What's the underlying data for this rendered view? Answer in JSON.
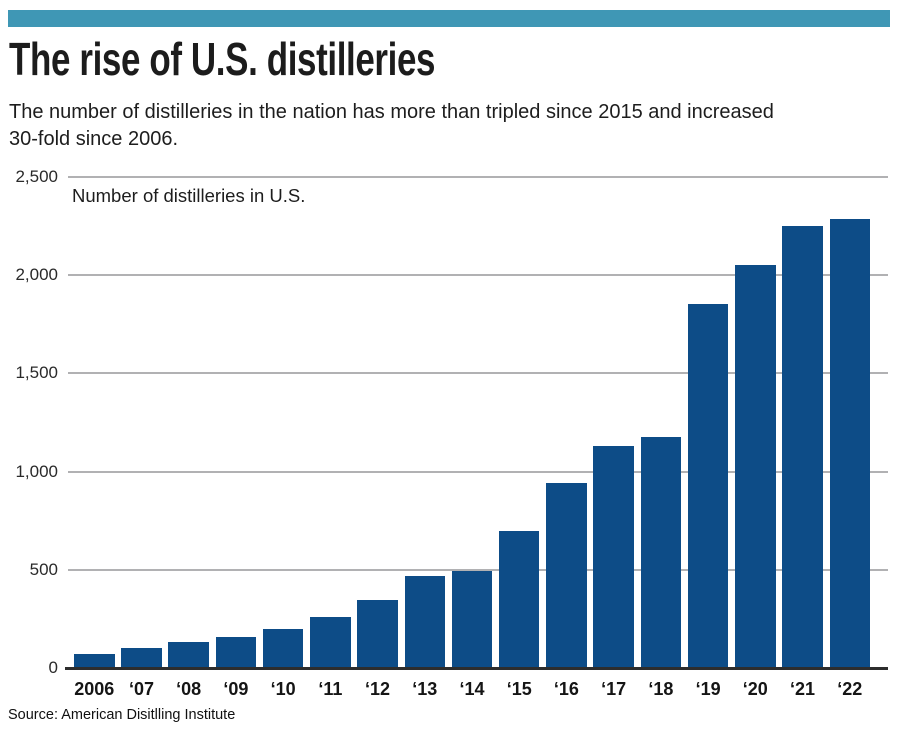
{
  "header": {
    "accent_bar_color": "#3f97b5",
    "title": "The rise of U.S. distilleries",
    "subtitle_lines": [
      "The number of distilleries in the nation has more than tripled since 2015 and increased",
      "30-fold since 2006."
    ]
  },
  "chart_data": {
    "type": "bar",
    "title": "Number of distilleries in U.S.",
    "categories": [
      "2006",
      "‘07",
      "‘08",
      "‘09",
      "‘10",
      "‘11",
      "‘12",
      "‘13",
      "‘14",
      "‘15",
      "‘16",
      "‘17",
      "‘18",
      "‘19",
      "‘20",
      "‘21",
      "‘22"
    ],
    "values": [
      70,
      100,
      130,
      160,
      200,
      260,
      345,
      470,
      495,
      700,
      940,
      1130,
      1175,
      1855,
      2050,
      2250,
      2285
    ],
    "xlabel": "",
    "ylabel": "",
    "ylim": [
      0,
      2500
    ],
    "yticks": [
      {
        "label": "2,500",
        "value": 2500
      },
      {
        "label": "2,000",
        "value": 2000
      },
      {
        "label": "1,500",
        "value": 1500
      },
      {
        "label": "1,000",
        "value": 1000
      },
      {
        "label": "500",
        "value": 500
      },
      {
        "label": "0",
        "value": 0
      }
    ],
    "bar_color": "#0d4c87",
    "gridline_color": "#b1b1b3",
    "grid": true,
    "legend_position": "none"
  },
  "source": "Source: American Disitlling Institute"
}
